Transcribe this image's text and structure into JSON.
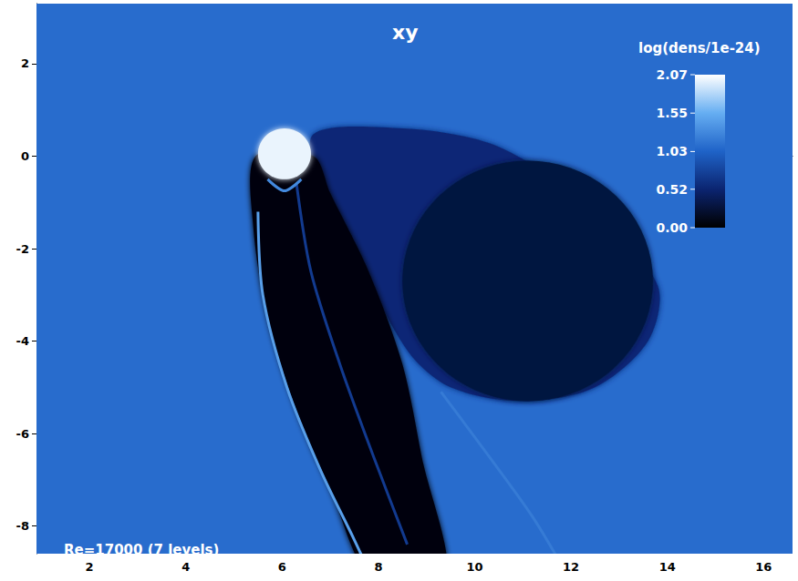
{
  "chart_data": {
    "type": "heatmap",
    "title": "xy",
    "annotation": "Re=17000 (7 levels)",
    "xlim": [
      0.9,
      16.6
    ],
    "xticks": [
      2,
      4,
      6,
      8,
      10,
      12,
      14,
      16
    ],
    "ylim": [
      -8.6,
      3.3
    ],
    "yticks": [
      -8,
      -6,
      -4,
      -2,
      0,
      2
    ],
    "grid": false,
    "colorbar": {
      "label": "log(dens/1e-24)",
      "range": [
        0,
        2.07
      ],
      "ticks": [
        {
          "value": 0,
          "label": "0.00"
        },
        0.52,
        1.03,
        1.55,
        2.07
      ]
    },
    "background": 1.1,
    "regions": [
      {
        "value": 0.55,
        "points": [
          [
            6.6,
            0.4
          ],
          [
            8.5,
            0.6
          ],
          [
            10.5,
            0.2
          ],
          [
            12.5,
            -1.2
          ],
          [
            13.8,
            -2.8
          ],
          [
            13.6,
            -4.0
          ],
          [
            12.5,
            -5.0
          ],
          [
            11.0,
            -5.3
          ],
          [
            9.5,
            -5.0
          ],
          [
            8.6,
            -4.2
          ],
          [
            7.5,
            -2.0
          ]
        ]
      },
      {
        "value": 0.3,
        "center": [
          11.1,
          -2.7
        ],
        "radius": 2.6
      },
      {
        "value": 0.08,
        "points": [
          [
            5.45,
            0
          ],
          [
            5.4,
            -1.5
          ],
          [
            5.7,
            -3.5
          ],
          [
            6.3,
            -5.5
          ],
          [
            7.0,
            -7.2
          ],
          [
            7.9,
            -9.2
          ],
          [
            9.4,
            -9.2
          ],
          [
            8.9,
            -6.5
          ],
          [
            8.5,
            -4.5
          ],
          [
            7.8,
            -2.5
          ],
          [
            7.0,
            -0.8
          ],
          [
            6.65,
            0
          ]
        ]
      },
      {
        "value": 2.0,
        "center": [
          6.05,
          0.05
        ],
        "radius": 0.55
      }
    ],
    "filaments": [
      {
        "value": 1.45,
        "points": [
          [
            5.5,
            -1.2
          ],
          [
            5.6,
            -3.0
          ],
          [
            6.1,
            -5.0
          ],
          [
            6.8,
            -6.8
          ],
          [
            7.5,
            -8.3
          ],
          [
            7.9,
            -9.2
          ]
        ]
      },
      {
        "value": 1.2,
        "points": [
          [
            9.3,
            -5.1
          ],
          [
            10.3,
            -6.5
          ],
          [
            11.2,
            -7.8
          ],
          [
            12.0,
            -9.2
          ]
        ]
      },
      {
        "value": 0.7,
        "points": [
          [
            6.3,
            -0.6
          ],
          [
            6.6,
            -2.5
          ],
          [
            7.2,
            -4.5
          ],
          [
            7.9,
            -6.5
          ],
          [
            8.6,
            -8.4
          ]
        ]
      },
      {
        "value": 1.3,
        "points": [
          [
            5.7,
            -0.5
          ],
          [
            6.05,
            -0.75
          ],
          [
            6.4,
            -0.5
          ]
        ]
      }
    ]
  }
}
